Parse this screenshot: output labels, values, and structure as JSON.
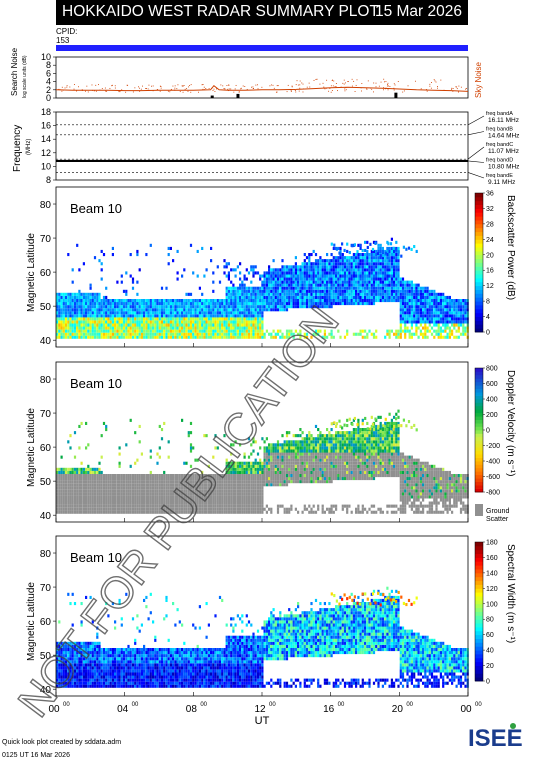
{
  "header": {
    "title": "HOKKAIDO WEST RADAR SUMMARY PLOT",
    "date": "15 Mar 2026"
  },
  "cpid": {
    "label": "CPID:",
    "value": "153"
  },
  "footer": {
    "credit": "Quick look plot created by sddata.adm",
    "time": "0125 UT 16 Mar 2026"
  },
  "logo": {
    "text": "ISEE"
  },
  "watermark": "NOT FOR PUBLICATION",
  "x_axis": {
    "label": "UT",
    "ticks": [
      "00",
      "04",
      "08",
      "12",
      "16",
      "20",
      "00"
    ],
    "tick_superscript": "00"
  },
  "colors": {
    "noise_line": "#d04000",
    "noise_label": "#d04000",
    "cpid_bar": "#2020ff",
    "ground_scatter": "#909090"
  },
  "chart_data": [
    {
      "type": "line",
      "ylabel_line1": "Search Noise",
      "ylabel_line2": "log scale units (dB)",
      "right_label": "Sky Noise",
      "ylim": [
        0,
        10
      ],
      "yticks": [
        0,
        2,
        4,
        6,
        8,
        10
      ],
      "x": [
        0,
        1,
        2,
        3,
        4,
        5,
        6,
        7,
        8,
        9,
        9.2,
        9.5,
        10,
        11,
        12,
        13,
        14,
        15,
        16,
        17,
        18,
        19,
        20,
        21,
        22,
        23,
        24
      ],
      "values": [
        2.0,
        1.9,
        1.9,
        1.9,
        1.8,
        1.8,
        1.9,
        1.9,
        1.9,
        2.0,
        3.0,
        2.0,
        1.9,
        1.9,
        2.0,
        2.0,
        2.1,
        2.3,
        2.5,
        2.6,
        2.5,
        2.4,
        2.2,
        2.0,
        1.9,
        1.8,
        1.6
      ],
      "markers": [
        {
          "x": 9.1,
          "height": 0.6
        },
        {
          "x": 10.6,
          "height": 1.0
        },
        {
          "x": 19.8,
          "height": 1.3
        }
      ]
    },
    {
      "type": "line",
      "ylabel_line1": "Frequency",
      "ylabel_line2": "(MHz)",
      "ylim": [
        8,
        18
      ],
      "yticks": [
        8,
        10,
        12,
        14,
        16,
        18
      ],
      "bands": [
        {
          "name": "freq bandA",
          "freq": "16.11 MHz",
          "value": 16.11
        },
        {
          "name": "freq bandB",
          "freq": "14.64 MHz",
          "value": 14.64
        },
        {
          "name": "freq bandC",
          "freq": "11.07 MHz",
          "value": 11.07
        },
        {
          "name": "freq bandD",
          "freq": "10.80 MHz",
          "value": 10.8
        },
        {
          "name": "freq bandE",
          "freq": "9.11 MHz",
          "value": 9.11
        }
      ],
      "operating_frequency": 10.8
    },
    {
      "type": "heatmap",
      "beam": "Beam 10",
      "ylabel": "Magnetic Latitude",
      "ylim": [
        38,
        85
      ],
      "yticks": [
        40,
        50,
        60,
        70,
        80
      ],
      "colorbar": {
        "label": "Backscatter Power (dB)",
        "min": 0,
        "max": 36,
        "ticks": [
          0,
          4,
          8,
          12,
          16,
          20,
          24,
          28,
          32,
          36
        ]
      }
    },
    {
      "type": "heatmap",
      "beam": "Beam 10",
      "ylabel": "Magnetic Latitude",
      "ylim": [
        38,
        85
      ],
      "yticks": [
        40,
        50,
        60,
        70,
        80
      ],
      "colorbar": {
        "label": "Doppler Velocity (m s⁻¹)",
        "min": -800,
        "max": 800,
        "ticks": [
          -800,
          -600,
          -400,
          -200,
          0,
          200,
          400,
          600,
          800
        ],
        "ground_label_1": "Ground",
        "ground_label_2": "Scatter"
      }
    },
    {
      "type": "heatmap",
      "beam": "Beam 10",
      "ylabel": "Magnetic Latitude",
      "ylim": [
        38,
        85
      ],
      "yticks": [
        40,
        50,
        60,
        70,
        80
      ],
      "colorbar": {
        "label": "Spectral Width (m s⁻¹)",
        "min": 0,
        "max": 180,
        "ticks": [
          0,
          20,
          40,
          60,
          80,
          100,
          120,
          140,
          160,
          180
        ]
      }
    }
  ]
}
